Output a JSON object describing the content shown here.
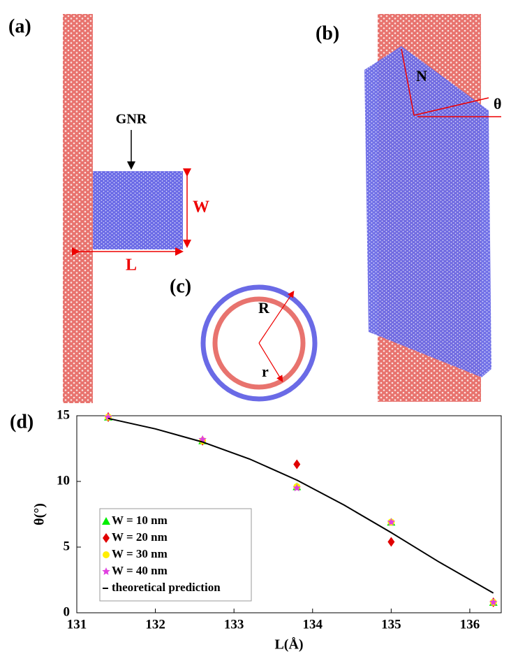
{
  "figure": {
    "panel_a": {
      "label": "(a)",
      "gnr": "GNR",
      "width": "W",
      "length": "L"
    },
    "panel_b": {
      "label": "(b)",
      "normal": "N",
      "angle": "θ"
    },
    "panel_c": {
      "label": "(c)",
      "outer_radius": "R",
      "inner_radius": "r"
    }
  },
  "chart_data": {
    "type": "scatter",
    "panel_label": "(d)",
    "xlabel": "L(Å)",
    "ylabel": "θ(°)",
    "x": [
      131.4,
      132.6,
      133.8,
      135,
      136.3
    ],
    "series": [
      {
        "name": "W = 10 nm",
        "color": "#00ee00",
        "marker": "triangle",
        "values": [
          14.9,
          13.1,
          9.6,
          6.9,
          0.8
        ]
      },
      {
        "name": "W = 20 nm",
        "color": "#e00000",
        "marker": "diamond",
        "values": [
          14.9,
          13.1,
          11.3,
          5.4,
          0.8
        ]
      },
      {
        "name": "W = 30 nm",
        "color": "#ffee00",
        "marker": "circle",
        "values": [
          14.9,
          13.1,
          9.6,
          6.9,
          0.8
        ]
      },
      {
        "name": "W = 40 nm",
        "color": "#e040e0",
        "marker": "star",
        "values": [
          14.9,
          13.2,
          9.5,
          6.9,
          0.8
        ]
      },
      {
        "name": "theoretical prediction",
        "color": "#000000",
        "type": "line",
        "x": [
          131.4,
          132,
          132.6,
          133.2,
          133.8,
          134.4,
          135,
          135.6,
          136.3
        ],
        "values": [
          14.8,
          14.0,
          13.0,
          11.7,
          10.1,
          8.2,
          6.1,
          3.9,
          1.5
        ]
      }
    ],
    "xlim": [
      131,
      136.4
    ],
    "ylim": [
      0,
      15
    ],
    "xticks": [
      131,
      132,
      133,
      134,
      135,
      136
    ],
    "yticks": [
      0,
      5,
      10,
      15
    ],
    "grid": false,
    "legend": "lower-left"
  }
}
